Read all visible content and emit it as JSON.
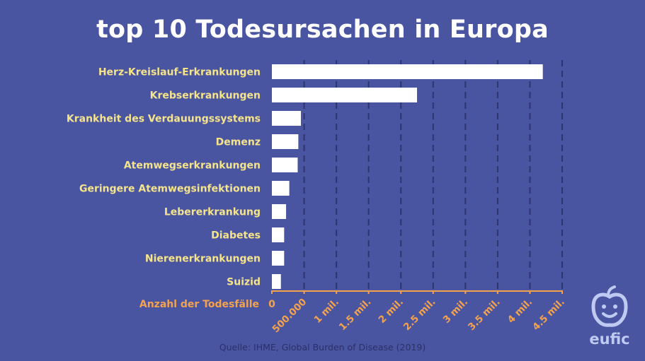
{
  "title": "top 10 Todesursachen in Europa",
  "source": "Quelle: IHME, Global Burden of Disease (2019)",
  "logo_text": "eufic",
  "colors": {
    "background": "#4a55a2",
    "bar": "#ffffff",
    "category_label": "#f5e48a",
    "axis": "#f5a24d",
    "grid": "#2e356e",
    "source": "#2a3068",
    "logo": "#bfcaf2"
  },
  "chart_data": {
    "type": "bar",
    "orientation": "horizontal",
    "title": "top 10 Todesursachen in Europa",
    "xlabel": "Anzahl der Todesfälle",
    "ylabel": "",
    "xlim": [
      0,
      4500000
    ],
    "grid": true,
    "categories": [
      "Herz-Kreislauf-Erkrankungen",
      "Krebserkrankungen",
      "Krankheit des Verdauungssystems",
      "Demenz",
      "Atemwegserkrankungen",
      "Geringere Atemwegsinfektionen",
      "Lebererkrankung",
      "Diabetes",
      "Nierenerkrankungen",
      "Suizid"
    ],
    "values": [
      4200000,
      2250000,
      450000,
      410000,
      400000,
      270000,
      220000,
      190000,
      190000,
      140000
    ],
    "ticks": [
      0,
      500000,
      1000000,
      1500000,
      2000000,
      2500000,
      3000000,
      3500000,
      4000000,
      4500000
    ],
    "tick_labels": [
      "0",
      "500.000",
      "1 mil.",
      "1.5 mil.",
      "2 mil.",
      "2.5 mil.",
      "3 mil.",
      "3.5 mil.",
      "4 mil.",
      "4.5 mil."
    ]
  }
}
